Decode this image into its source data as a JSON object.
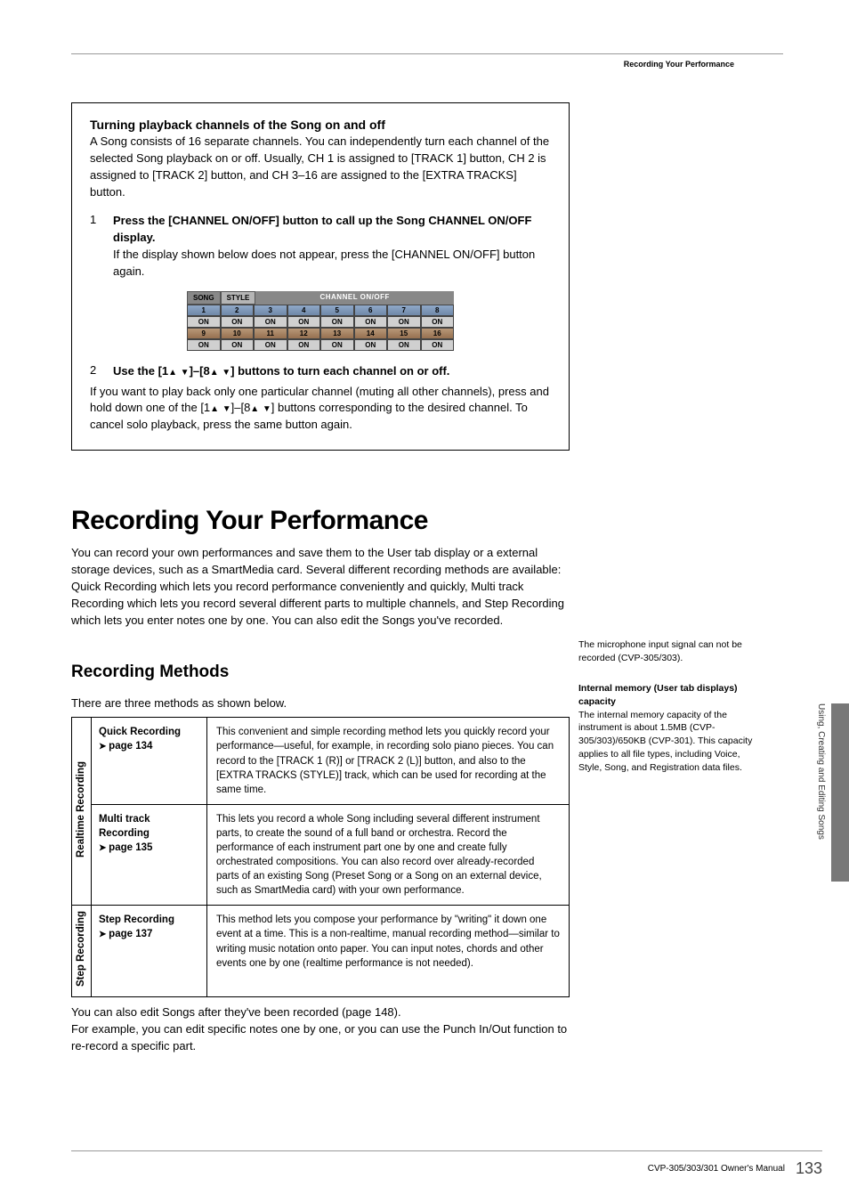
{
  "header": {
    "breadcrumb": "Recording Your Performance"
  },
  "box1": {
    "title": "Turning playback channels of the Song on and off",
    "intro": "A Song consists of 16 separate channels. You can independently turn each channel of the selected Song playback on or off. Usually, CH 1 is assigned to [TRACK 1] button, CH 2 is assigned to [TRACK 2] button, and CH 3–16 are assigned to the [EXTRA TRACKS] button.",
    "step1": {
      "num": "1",
      "bold": "Press the [CHANNEL ON/OFF] button to call up the Song CHANNEL ON/OFF display.",
      "text": "If the display shown below does not appear, press the [CHANNEL ON/OFF] button again."
    },
    "display": {
      "tab1": "SONG",
      "tab2": "STYLE",
      "label": "CHANNEL ON/OFF",
      "row1": [
        "1",
        "2",
        "3",
        "4",
        "5",
        "6",
        "7",
        "8"
      ],
      "row_on": [
        "ON",
        "ON",
        "ON",
        "ON",
        "ON",
        "ON",
        "ON",
        "ON"
      ],
      "row2": [
        "9",
        "10",
        "11",
        "12",
        "13",
        "14",
        "15",
        "16"
      ]
    },
    "step2": {
      "num": "2",
      "bold_pre": "Use the [1",
      "bold_mid": "]–[8",
      "bold_post": "] buttons to turn each channel on or off.",
      "para_a": "If you want to play back only one particular channel (muting all other channels), press and hold down one of the [1",
      "para_b": "]–[8",
      "para_c": "] buttons corresponding to the desired channel. To cancel solo playback, press the same button again."
    }
  },
  "section": {
    "title": "Recording Your Performance",
    "p1": "You can record your own performances and save them to the User tab display or a external storage devices, such as a SmartMedia card. Several different recording methods are available:",
    "p2": "Quick Recording which lets you record performance conveniently and quickly, Multi track Recording which lets you record several different parts to multiple channels, and Step Recording which lets you enter notes one by one. You can also edit the Songs you've recorded."
  },
  "sub": {
    "title": "Recording Methods",
    "intro": "There are three methods as shown below."
  },
  "table": {
    "group1": "Realtime Recording",
    "group2": "Step Recording",
    "r1": {
      "name": "Quick Recording",
      "page": "page 134",
      "desc": "This convenient and simple recording method lets you quickly record your performance—useful, for example, in recording solo piano pieces. You can record to the [TRACK 1 (R)] or [TRACK 2 (L)] button, and also to the [EXTRA TRACKS (STYLE)] track, which can be used for recording at the same time."
    },
    "r2": {
      "name": "Multi track Recording",
      "page": "page 135",
      "desc": "This lets you record a whole Song including several different instrument parts, to create the sound of a full band or orchestra. Record the performance of each instrument part one by one and create fully orchestrated compositions. You can also record over already-recorded parts of an existing Song (Preset Song or a Song on an external device, such as SmartMedia card) with your own performance."
    },
    "r3": {
      "name": "Step Recording",
      "page": "page 137",
      "desc": "This method lets you compose your performance by \"writing\" it down one event at a time. This is a non-realtime, manual recording method—similar to writing music notation onto paper. You can input notes, chords and other events one by one (realtime performance is not needed)."
    }
  },
  "after": {
    "p1": "You can also edit Songs after they've been recorded (page 148).",
    "p2": "For example, you can edit specific notes one by one, or you can use the Punch In/Out function to re-record a specific part."
  },
  "side": {
    "note1": "The microphone input signal can not be recorded (CVP-305/303).",
    "note2_title": "Internal memory (User tab displays) capacity",
    "note2_body": "The internal memory capacity of the instrument is about 1.5MB (CVP-305/303)/650KB (CVP-301). This capacity applies to all file types, including Voice, Style, Song, and Registration data files.",
    "tab": "Using, Creating and Editing Songs"
  },
  "footer": {
    "manual": "CVP-305/303/301 Owner's Manual",
    "page": "133"
  }
}
